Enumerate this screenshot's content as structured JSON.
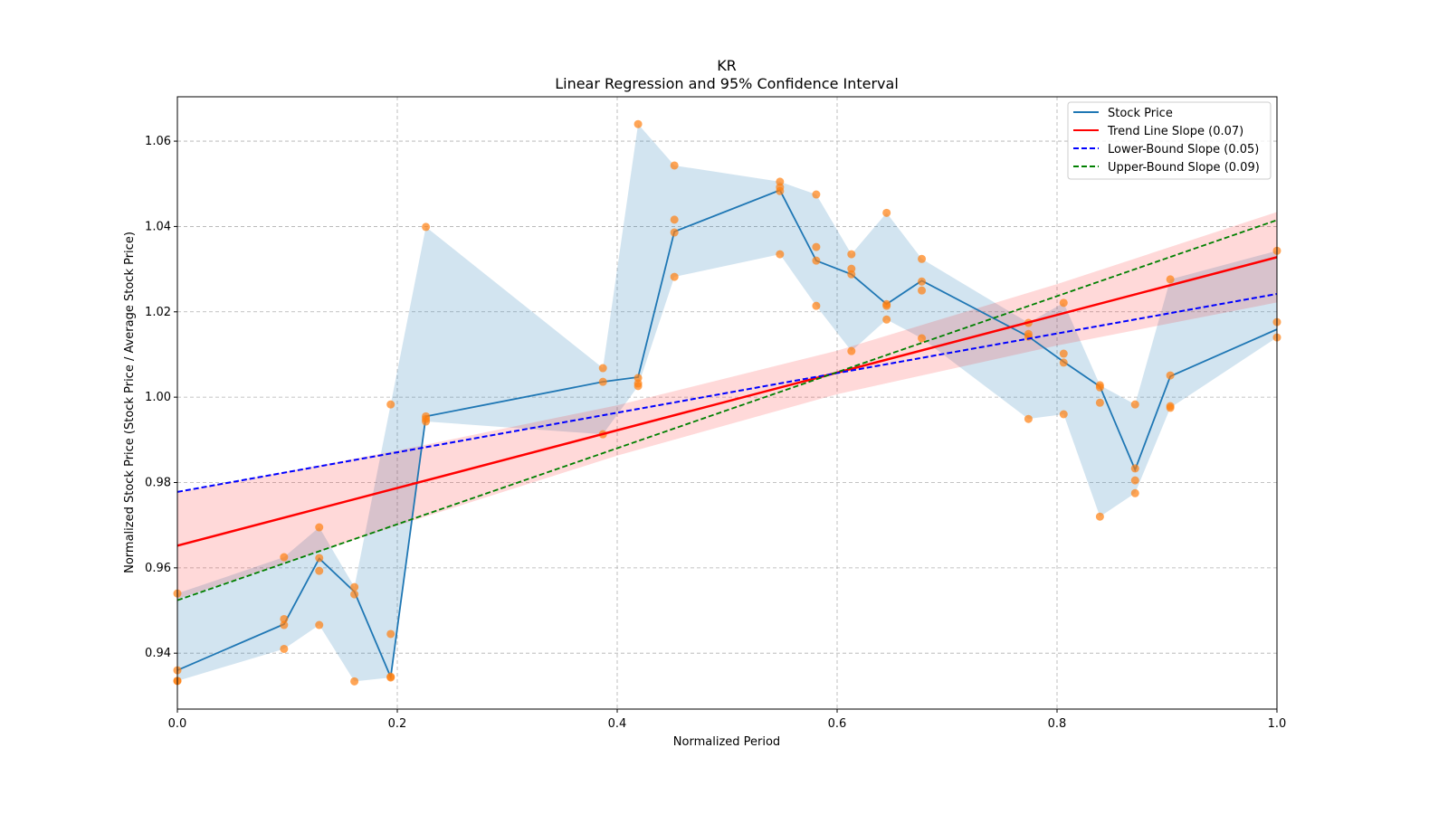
{
  "chart_data": {
    "type": "line",
    "title": "KR",
    "subtitle": "Linear Regression and 95% Confidence Interval",
    "xlabel": "Normalized Period",
    "ylabel": "Normalized Stock Price (Stock Price / Average Stock Price)",
    "xlim": [
      0,
      1.0
    ],
    "ylim": [
      0.9269,
      1.0704
    ],
    "xticks": [
      "0.0",
      "0.2",
      "0.4",
      "0.6",
      "0.8",
      "1.0"
    ],
    "xtick_values": [
      0,
      0.2,
      0.4,
      0.6,
      0.8,
      1.0
    ],
    "yticks": [
      "0.94",
      "0.96",
      "0.98",
      "1.00",
      "1.02",
      "1.04",
      "1.06"
    ],
    "ytick_values": [
      0.94,
      0.96,
      0.98,
      1.0,
      1.02,
      1.04,
      1.06
    ],
    "grid": true,
    "legend_position": "top-right",
    "legend": [
      "Stock Price",
      "Trend Line Slope (0.07)",
      "Lower-Bound Slope (0.05)",
      "Upper-Bound Slope (0.09)"
    ],
    "colors": {
      "stock": "#1f77b4",
      "band": "#1f77b4",
      "scatter": "#ff7f0e",
      "trend": "#ff0000",
      "ci": "#ffb6bd",
      "lower": "#0000ff",
      "upper": "#008000"
    },
    "stock_line": {
      "x": [
        0,
        0.097,
        0.129,
        0.161,
        0.194,
        0.226,
        0.387,
        0.419,
        0.452,
        0.548,
        0.581,
        0.613,
        0.645,
        0.677,
        0.774,
        0.806,
        0.839,
        0.871,
        0.903,
        1.0
      ],
      "y": [
        0.936,
        0.9468,
        0.9622,
        0.9544,
        0.9344,
        0.9955,
        1.0036,
        1.0047,
        1.0388,
        1.0485,
        1.032,
        1.0288,
        1.0218,
        1.0273,
        1.0142,
        1.0083,
        1.0025,
        0.983,
        1.0049,
        1.0159
      ]
    },
    "scatter": [
      {
        "x": 0,
        "y": [
          0.954,
          0.9335,
          0.9335,
          0.936
        ]
      },
      {
        "x": 0.097,
        "y": [
          0.9625,
          0.948,
          0.9466,
          0.941
        ]
      },
      {
        "x": 0.129,
        "y": [
          0.9695,
          0.9623,
          0.9593,
          0.9466
        ]
      },
      {
        "x": 0.161,
        "y": [
          0.9555,
          0.9538,
          0.9334
        ]
      },
      {
        "x": 0.194,
        "y": [
          0.9983,
          0.9445,
          0.9343,
          0.9345
        ]
      },
      {
        "x": 0.226,
        "y": [
          1.0399,
          0.9955,
          0.9949,
          0.9943
        ]
      },
      {
        "x": 0.387,
        "y": [
          1.0068,
          1.0036,
          0.9913
        ]
      },
      {
        "x": 0.419,
        "y": [
          1.064,
          1.0045,
          1.0032,
          1.0026
        ]
      },
      {
        "x": 0.452,
        "y": [
          1.0543,
          1.0416,
          1.0386,
          1.0282
        ]
      },
      {
        "x": 0.548,
        "y": [
          1.0505,
          1.0492,
          1.0483,
          1.0335
        ]
      },
      {
        "x": 0.581,
        "y": [
          1.0475,
          1.0352,
          1.032,
          1.0214
        ]
      },
      {
        "x": 0.613,
        "y": [
          1.0335,
          1.0301,
          1.0288,
          1.0108
        ]
      },
      {
        "x": 0.645,
        "y": [
          1.0432,
          1.0218,
          1.0214,
          1.0182
        ]
      },
      {
        "x": 0.677,
        "y": [
          1.0324,
          1.0271,
          1.025,
          1.0138
        ]
      },
      {
        "x": 0.774,
        "y": [
          1.0174,
          1.0148,
          1.0142,
          0.9949
        ]
      },
      {
        "x": 0.806,
        "y": [
          1.0221,
          1.0102,
          1.0081,
          0.996
        ]
      },
      {
        "x": 0.839,
        "y": [
          1.0028,
          1.0023,
          0.9987,
          0.972
        ]
      },
      {
        "x": 0.871,
        "y": [
          0.9983,
          0.9833,
          0.9805,
          0.9775
        ]
      },
      {
        "x": 0.903,
        "y": [
          1.0276,
          1.0051,
          0.9979,
          0.9975
        ]
      },
      {
        "x": 1.0,
        "y": [
          1.0343,
          1.0176,
          1.014
        ]
      }
    ],
    "trend": {
      "x": [
        0,
        1
      ],
      "y": [
        0.9652,
        1.0328
      ]
    },
    "lower_bound": {
      "x": [
        0,
        1
      ],
      "y": [
        0.9778,
        1.0242
      ]
    },
    "upper_bound": {
      "x": [
        0,
        1
      ],
      "y": [
        0.9524,
        1.0415
      ]
    },
    "ci_band": {
      "x": [
        0,
        0.2,
        0.4,
        0.6,
        0.8,
        1.0
      ],
      "lower": [
        0.9527,
        0.9699,
        0.9863,
        1.0007,
        1.0121,
        1.0222
      ],
      "upper": [
        0.9777,
        0.9875,
        0.9981,
        1.0109,
        1.0265,
        1.0434
      ]
    }
  }
}
